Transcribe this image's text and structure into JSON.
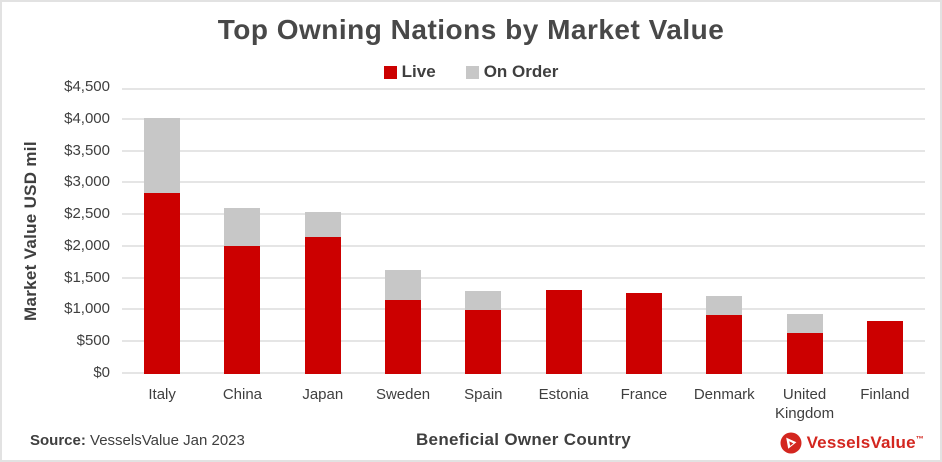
{
  "title": "Top Owning Nations by Market Value",
  "source": {
    "label": "Source:",
    "text": "VesselsValue Jan 2023"
  },
  "logo": {
    "text": "VesselsValue",
    "tm": "™",
    "color": "#d3261f"
  },
  "colors": {
    "live": "#cc0000",
    "on_order": "#c7c7c7",
    "grid": "#e5e5e5",
    "text": "#3f3f3f"
  },
  "chart_data": {
    "type": "bar",
    "stacked": true,
    "title": "Top Owning Nations by Market Value",
    "xlabel": "Beneficial Owner Country",
    "ylabel": "Market Value USD mil",
    "ylim": [
      0,
      4500
    ],
    "ytick_step": 500,
    "ytick_labels": [
      "$0",
      "$500",
      "$1,000",
      "$1,500",
      "$2,000",
      "$2,500",
      "$3,000",
      "$3,500",
      "$4,000",
      "$4,500"
    ],
    "grid": true,
    "legend_position": "top",
    "categories": [
      "Italy",
      "China",
      "Japan",
      "Sweden",
      "Spain",
      "Estonia",
      "France",
      "Denmark",
      "United Kingdom",
      "Finland"
    ],
    "series": [
      {
        "name": "Live",
        "color": "#cc0000",
        "values": [
          2850,
          2010,
          2150,
          1160,
          1000,
          1320,
          1270,
          930,
          640,
          830
        ]
      },
      {
        "name": "On Order",
        "color": "#c7c7c7",
        "values": [
          1180,
          600,
          395,
          480,
          310,
          0,
          0,
          290,
          300,
          0
        ]
      }
    ]
  }
}
